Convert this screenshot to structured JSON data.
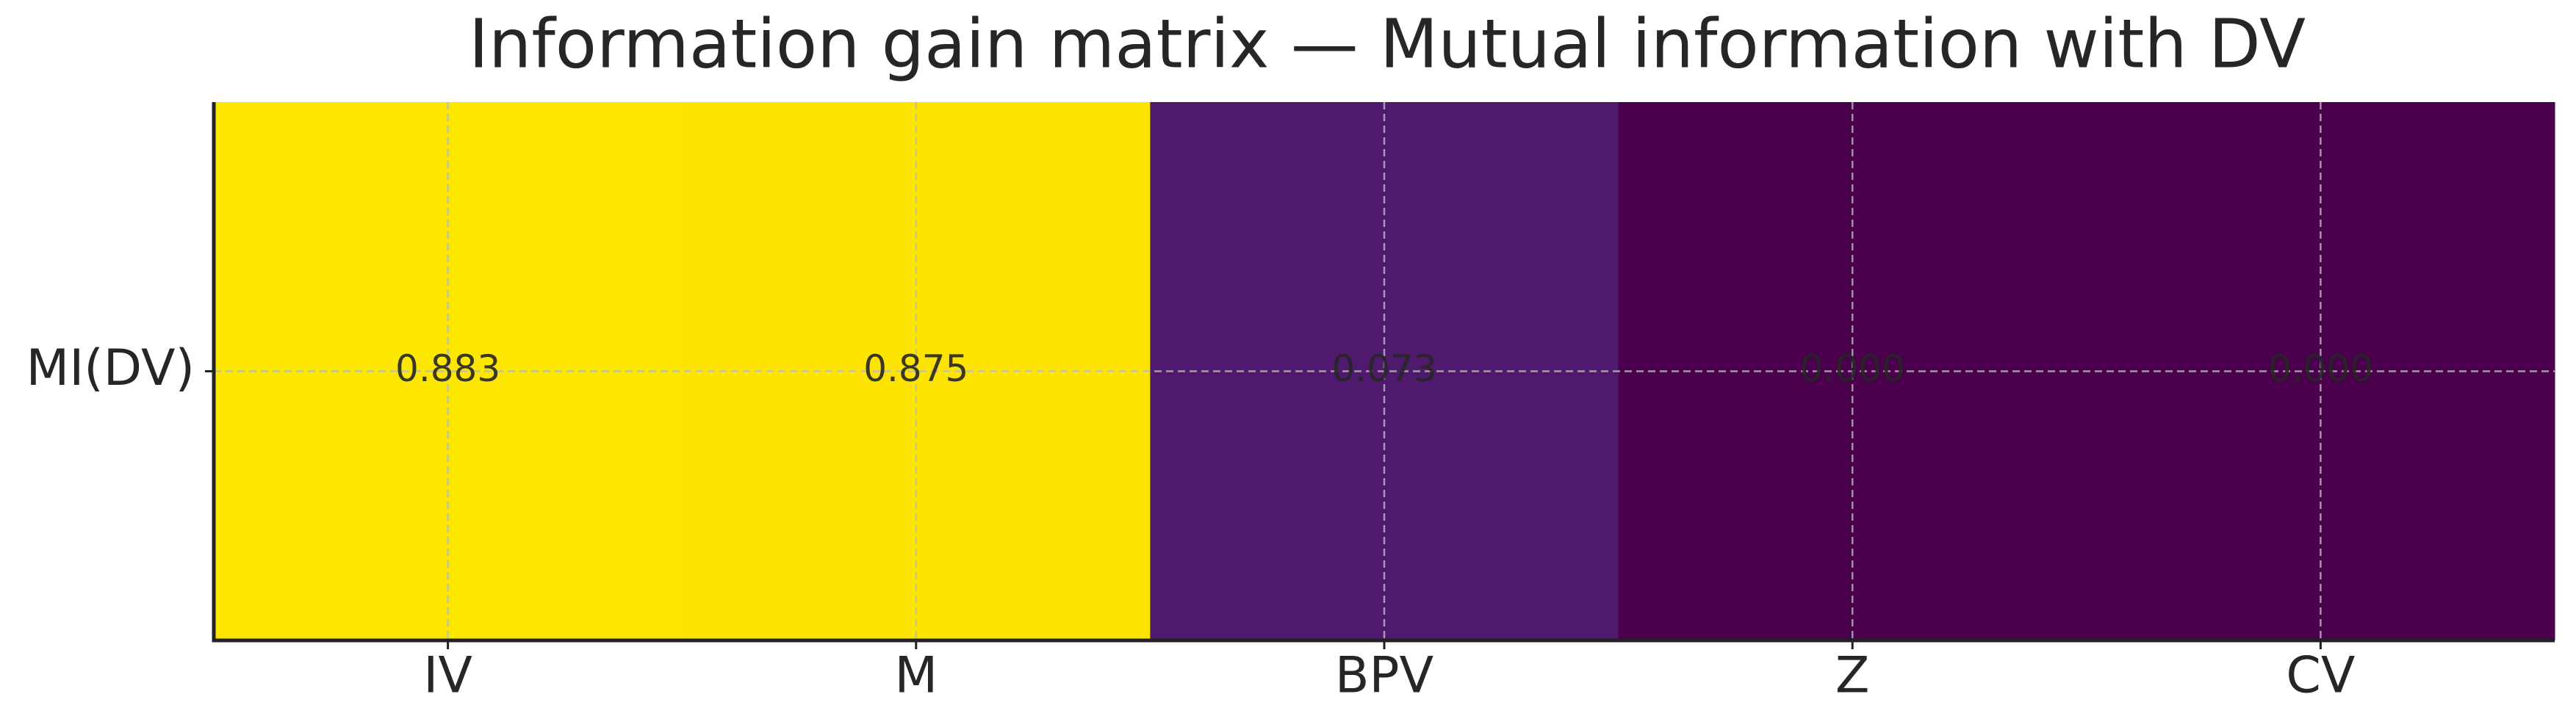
{
  "chart_data": {
    "type": "heatmap",
    "title": "Information gain matrix — Mutual information with DV",
    "x_categories": [
      "IV",
      "M",
      "BPV",
      "Z",
      "CV"
    ],
    "y_categories": [
      "MI(DV)"
    ],
    "values": [
      [
        0.883,
        0.875,
        0.073,
        0.0,
        0.0
      ]
    ],
    "value_labels": [
      [
        "0.883",
        "0.875",
        "0.073",
        "0.000",
        "0.000"
      ]
    ],
    "colors": [
      [
        "#fde700",
        "#fde400",
        "#4f1a6d",
        "#4a004c",
        "#4a004c"
      ]
    ],
    "grid": true
  }
}
